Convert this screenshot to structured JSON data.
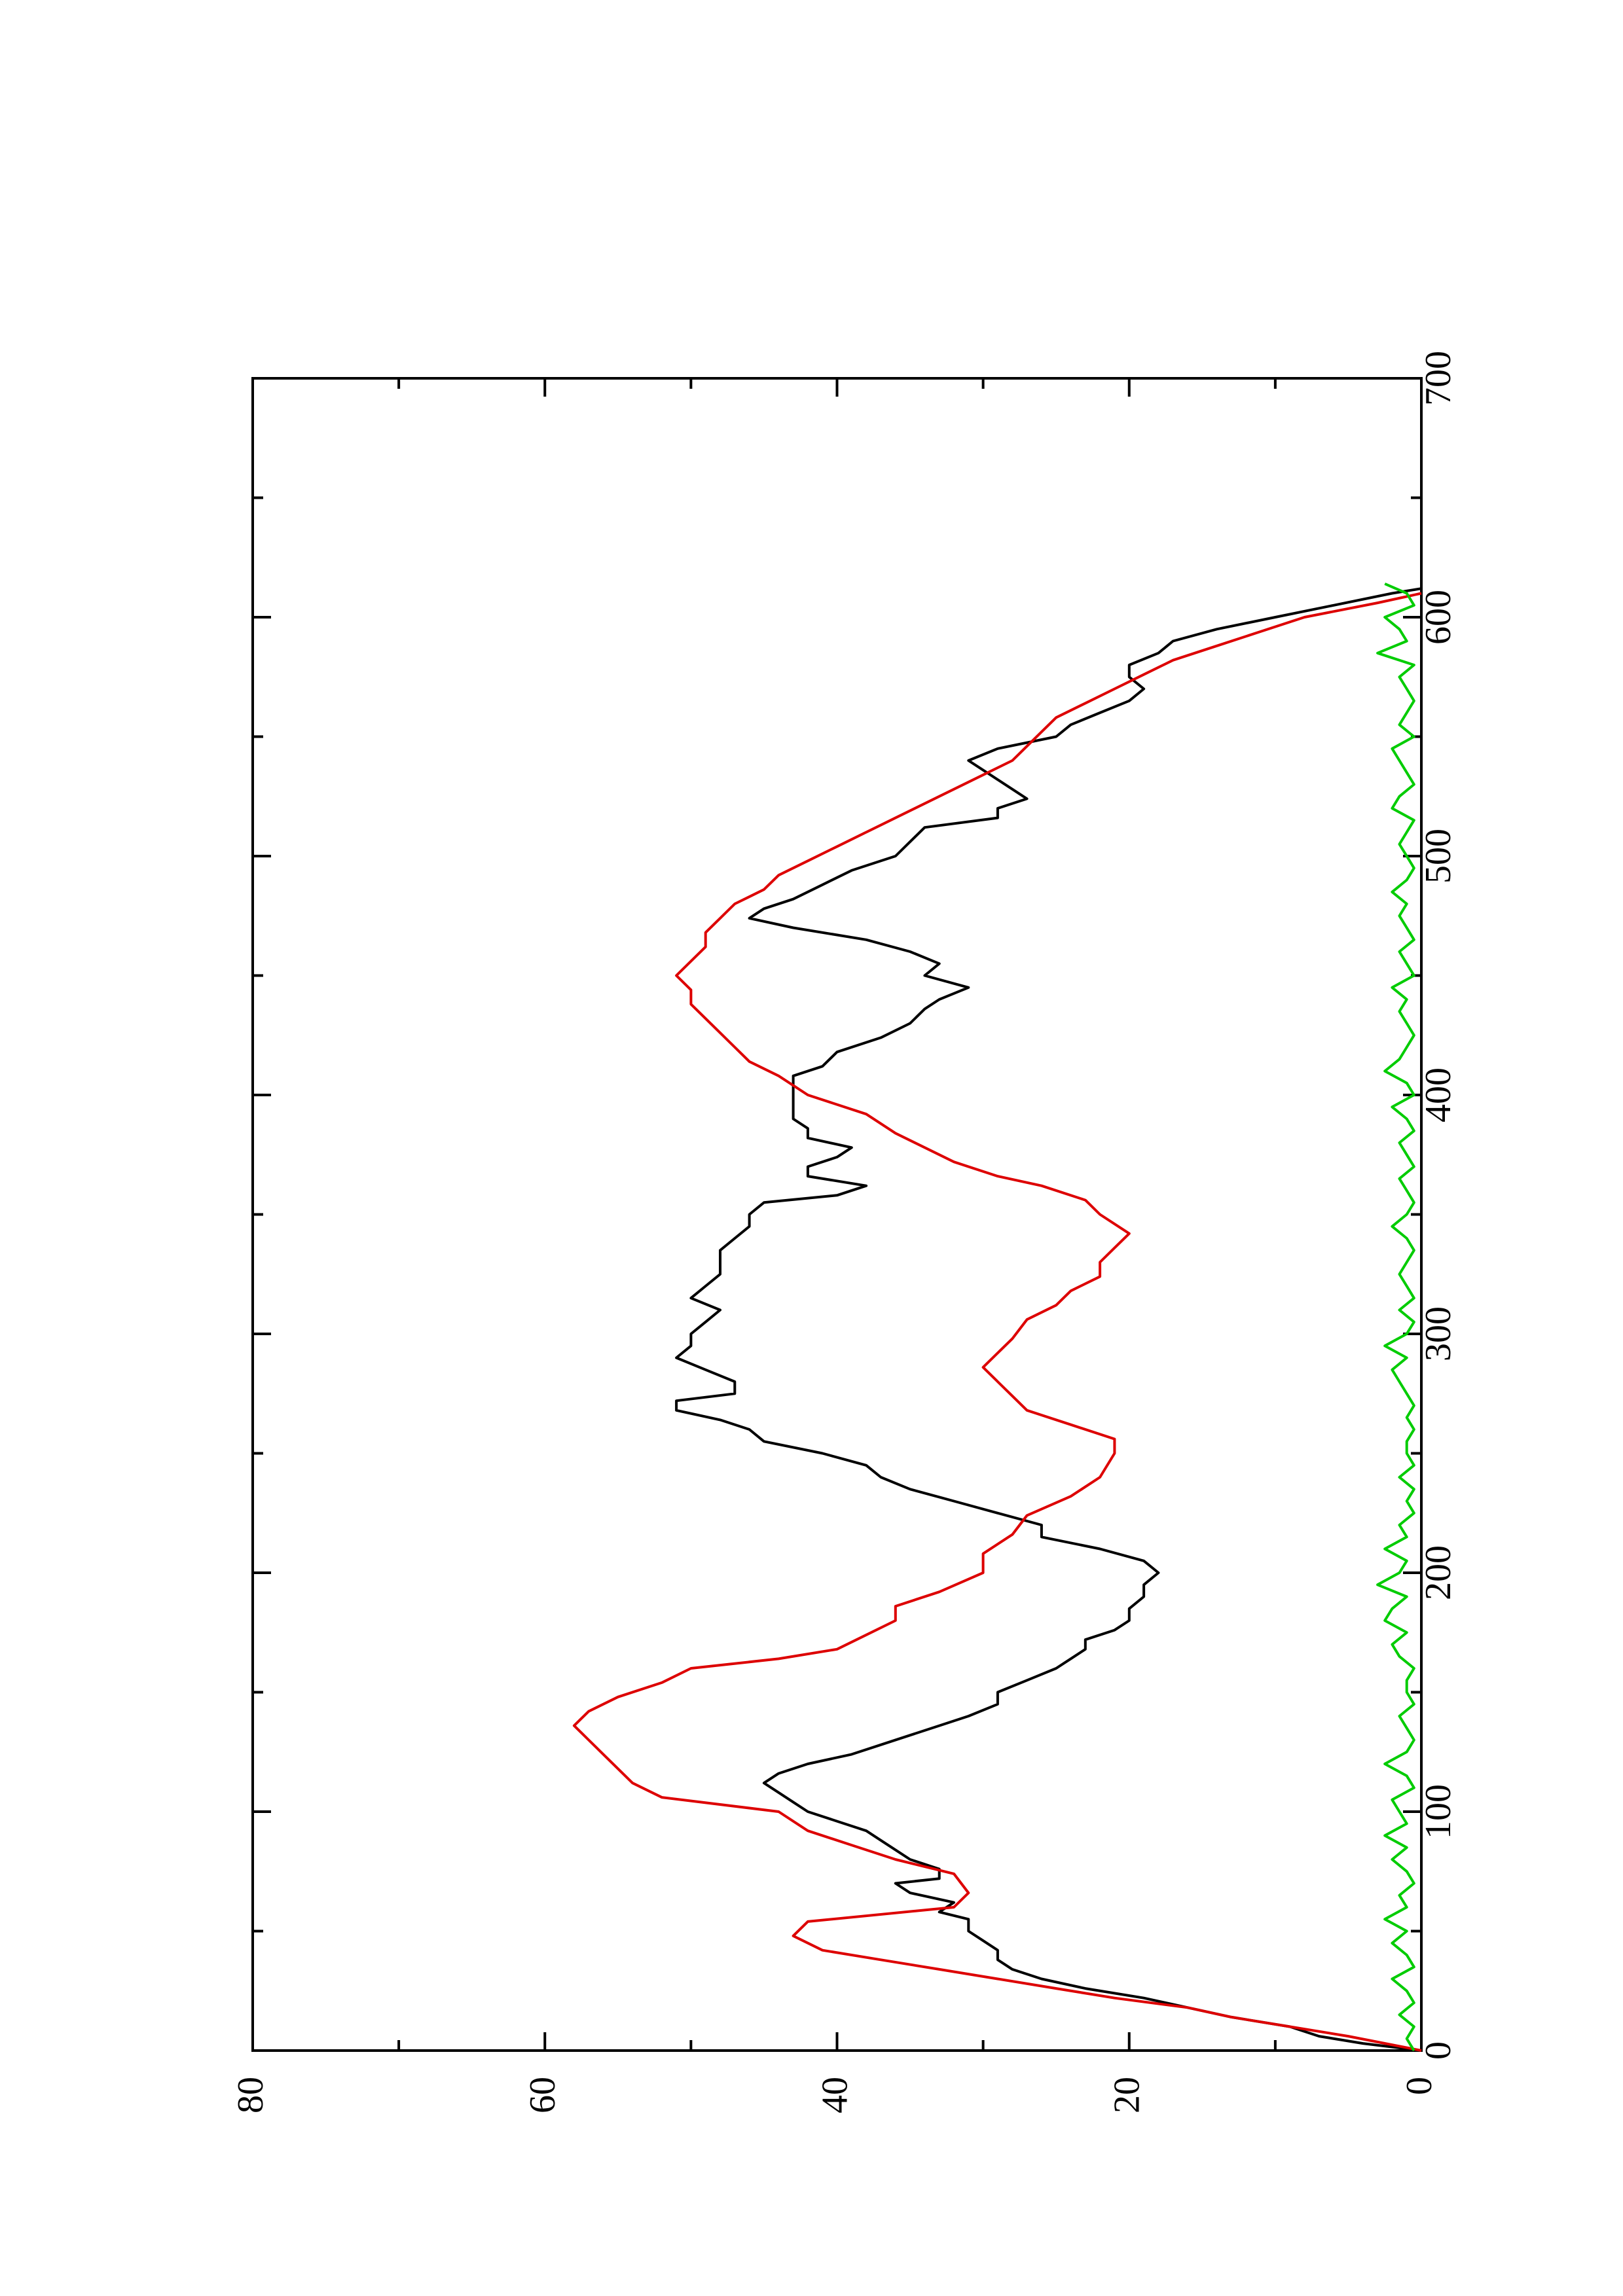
{
  "chart_data": {
    "type": "line",
    "title": "",
    "xlabel": "",
    "ylabel": "",
    "orientation": "rotated-90-ccw",
    "xlim": [
      0,
      700
    ],
    "ylim": [
      0,
      80
    ],
    "x_ticks": [
      "0",
      "100",
      "200",
      "300",
      "400",
      "500",
      "600",
      "700"
    ],
    "y_ticks": [
      "0",
      "20",
      "40",
      "60",
      "80"
    ],
    "grid": false,
    "series": [
      {
        "color": "#000000",
        "x": [
          0,
          3,
          6,
          10,
          14,
          18,
          22,
          26,
          30,
          34,
          38,
          42,
          46,
          50,
          55,
          58,
          62,
          66,
          70,
          72,
          76,
          80,
          84,
          88,
          92,
          96,
          100,
          104,
          108,
          112,
          116,
          120,
          124,
          128,
          132,
          136,
          140,
          145,
          150,
          155,
          160,
          164,
          168,
          172,
          176,
          180,
          185,
          190,
          195,
          200,
          205,
          210,
          215,
          220,
          225,
          230,
          235,
          240,
          245,
          250,
          255,
          260,
          264,
          268,
          272,
          275,
          280,
          285,
          290,
          295,
          300,
          305,
          310,
          315,
          320,
          325,
          330,
          335,
          340,
          345,
          350,
          355,
          358,
          362,
          366,
          370,
          374,
          378,
          382,
          386,
          390,
          396,
          402,
          408,
          412,
          418,
          424,
          430,
          436,
          440,
          445,
          450,
          455,
          460,
          465,
          470,
          474,
          478,
          482,
          488,
          494,
          500,
          506,
          512,
          516,
          520,
          524,
          528,
          532,
          536,
          540,
          545,
          550,
          555,
          560,
          565,
          570,
          575,
          580,
          585,
          590,
          595,
          600,
          605,
          610,
          612
        ],
        "values": [
          0,
          4,
          7,
          9,
          13,
          16,
          19,
          23,
          26,
          28,
          29,
          29,
          30,
          31,
          31,
          33,
          32,
          35,
          36,
          33,
          33,
          35,
          36,
          37,
          38,
          40,
          42,
          43,
          44,
          45,
          44,
          42,
          39,
          37,
          35,
          33,
          31,
          29,
          29,
          27,
          25,
          24,
          23,
          23,
          21,
          20,
          20,
          19,
          19,
          18,
          19,
          22,
          26,
          26,
          29,
          32,
          35,
          37,
          38,
          41,
          45,
          46,
          48,
          51,
          51,
          47,
          47,
          49,
          51,
          50,
          50,
          49,
          48,
          50,
          49,
          48,
          48,
          48,
          47,
          46,
          46,
          45,
          40,
          38,
          42,
          42,
          40,
          39,
          42,
          42,
          43,
          43,
          43,
          43,
          41,
          40,
          37,
          35,
          34,
          33,
          31,
          34,
          33,
          35,
          38,
          43,
          46,
          45,
          43,
          41,
          39,
          36,
          35,
          34,
          29,
          29,
          27,
          28,
          29,
          30,
          31,
          29,
          25,
          24,
          22,
          20,
          19,
          20,
          20,
          18,
          17,
          14,
          10,
          6,
          2,
          0
        ]
      },
      {
        "color": "#dd0000",
        "x": [
          0,
          6,
          10,
          14,
          18,
          22,
          26,
          30,
          34,
          38,
          42,
          48,
          54,
          60,
          66,
          74,
          80,
          86,
          92,
          100,
          106,
          112,
          118,
          124,
          130,
          136,
          142,
          148,
          154,
          160,
          164,
          168,
          174,
          180,
          186,
          192,
          200,
          208,
          216,
          224,
          232,
          240,
          250,
          256,
          262,
          268,
          274,
          280,
          286,
          292,
          298,
          306,
          312,
          318,
          324,
          330,
          336,
          342,
          350,
          356,
          362,
          366,
          372,
          378,
          384,
          392,
          400,
          408,
          414,
          420,
          426,
          432,
          438,
          444,
          450,
          456,
          462,
          468,
          474,
          480,
          486,
          492,
          498,
          504,
          510,
          516,
          522,
          528,
          534,
          540,
          546,
          552,
          558,
          564,
          570,
          576,
          582,
          588,
          594,
          600,
          606,
          610
        ],
        "values": [
          0,
          5,
          9,
          13,
          16,
          21,
          25,
          29,
          33,
          37,
          41,
          43,
          42,
          32,
          31,
          32,
          36,
          39,
          42,
          44,
          52,
          54,
          55,
          56,
          57,
          58,
          57,
          55,
          52,
          50,
          44,
          40,
          38,
          36,
          36,
          33,
          30,
          30,
          28,
          27,
          24,
          22,
          21,
          21,
          24,
          27,
          28,
          29,
          30,
          29,
          28,
          27,
          25,
          24,
          22,
          22,
          21,
          20,
          22,
          23,
          26,
          29,
          32,
          34,
          36,
          38,
          42,
          44,
          46,
          47,
          48,
          49,
          50,
          50,
          51,
          50,
          49,
          49,
          48,
          47,
          45,
          44,
          42,
          40,
          38,
          36,
          34,
          32,
          30,
          28,
          27,
          26,
          25,
          23,
          21,
          19,
          17,
          14,
          11,
          8,
          3,
          0
        ]
      },
      {
        "color": "#00cc00",
        "x": [
          0,
          5,
          10,
          15,
          20,
          25,
          30,
          35,
          40,
          45,
          50,
          55,
          60,
          65,
          70,
          75,
          80,
          85,
          90,
          95,
          100,
          105,
          110,
          115,
          120,
          125,
          130,
          135,
          140,
          145,
          150,
          155,
          160,
          165,
          170,
          175,
          180,
          185,
          190,
          195,
          200,
          205,
          210,
          215,
          220,
          225,
          230,
          235,
          240,
          245,
          250,
          255,
          260,
          265,
          270,
          275,
          280,
          285,
          290,
          295,
          300,
          305,
          310,
          315,
          320,
          325,
          330,
          335,
          340,
          345,
          350,
          355,
          360,
          365,
          370,
          375,
          380,
          385,
          390,
          395,
          400,
          405,
          410,
          415,
          420,
          425,
          430,
          435,
          440,
          445,
          450,
          455,
          460,
          465,
          470,
          475,
          480,
          485,
          490,
          495,
          500,
          505,
          510,
          515,
          520,
          525,
          530,
          535,
          540,
          545,
          550,
          555,
          560,
          565,
          570,
          575,
          580,
          585,
          590,
          595,
          600,
          605,
          610,
          614
        ],
        "values": [
          0.5,
          1,
          0.5,
          1.5,
          0.5,
          1,
          2,
          0.5,
          1,
          2,
          1,
          2.5,
          1,
          1.5,
          0.5,
          1,
          2,
          1,
          2.5,
          1,
          1.5,
          2,
          0.5,
          1,
          2.5,
          1,
          0.5,
          1,
          1.5,
          0.5,
          1,
          1,
          0.5,
          1.5,
          2,
          1,
          2.5,
          2,
          1,
          3,
          1.5,
          1,
          2.5,
          1,
          1.5,
          0.5,
          1,
          0.5,
          1.5,
          0.5,
          1,
          1,
          0.5,
          1,
          0.5,
          1,
          1.5,
          2,
          1,
          2.5,
          1,
          0.5,
          1.5,
          0.5,
          1,
          1.5,
          1,
          0.5,
          1,
          2,
          1,
          0.5,
          1,
          1.5,
          0.5,
          1,
          1.5,
          0.5,
          1,
          2,
          0.5,
          1,
          2.5,
          1.5,
          1,
          0.5,
          1,
          1.5,
          1,
          2,
          0.5,
          1,
          1.5,
          0.5,
          1,
          1.5,
          1,
          2,
          1,
          0.5,
          1,
          1.5,
          1,
          0.5,
          2,
          1.5,
          0.5,
          1,
          1.5,
          2,
          0.5,
          1.5,
          1,
          0.5,
          1,
          1.5,
          0.5,
          3,
          1,
          1.5,
          2.5,
          0.5,
          1,
          2.5
        ]
      }
    ]
  }
}
